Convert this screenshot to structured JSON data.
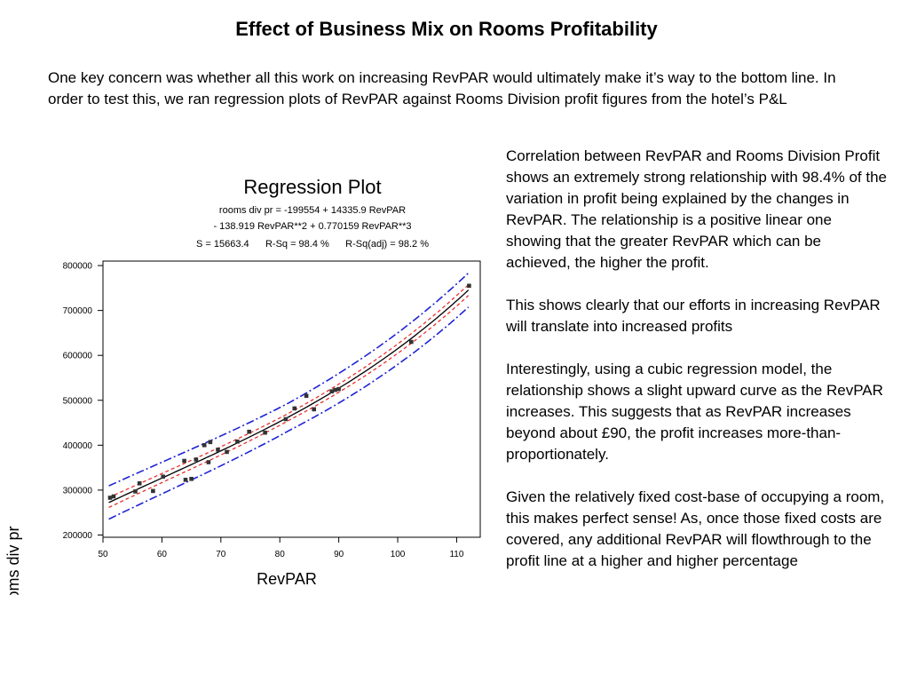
{
  "slide": {
    "title": "Effect of Business Mix on Rooms Profitability",
    "intro": "One key concern was whether all this work on increasing RevPAR would ultimately make it’s way to the bottom line. In order to test this, we ran regression plots of RevPAR against Rooms Division profit figures from the hotel’s P&L",
    "paragraphs": [
      "Correlation between RevPAR and Rooms Division Profit shows an extremely strong relationship with 98.4% of the variation in profit being explained by the changes in RevPAR. The relationship is a positive linear one showing that the greater RevPAR which can be achieved, the higher the profit.",
      "This shows clearly that our efforts in increasing RevPAR will translate into increased profits",
      "Interestingly, using a cubic regression model, the relationship shows a slight upward curve as the RevPAR increases. This suggests that as RevPAR increases beyond about £90, the profit increases more-than-proportionately.",
      "Given the relatively fixed cost-base of occupying a room, this makes perfect sense! As, once those fixed costs are covered, any additional RevPAR will flowthrough to the profit line at a higher and higher percentage"
    ]
  },
  "chart_data": {
    "type": "scatter",
    "title": "Regression Plot",
    "equation_lines": [
      "rooms div pr = -199554 + 14335.9 RevPAR",
      "- 138.919 RevPAR**2 + 0.770159 RevPAR**3",
      "S = 15663.4      R-Sq = 98.4 %      R-Sq(adj) = 98.2 %"
    ],
    "xlabel": "RevPAR",
    "ylabel": "rooms div pr",
    "xlim": [
      50,
      114
    ],
    "ylim": [
      195000,
      810000
    ],
    "x_ticks": [
      50,
      60,
      70,
      80,
      90,
      100,
      110
    ],
    "y_ticks": [
      200000,
      300000,
      400000,
      500000,
      600000,
      700000,
      800000
    ],
    "grid": false,
    "fit": {
      "intercept": -199554,
      "b1": 14335.9,
      "b2": -138.919,
      "b3": 0.770159,
      "x_range": [
        51,
        112
      ]
    },
    "ci_half_width": [
      11000,
      8000,
      12000
    ],
    "pi_half_width": [
      37000,
      31000,
      38000
    ],
    "colors": {
      "points": "#333333",
      "fit": "#000000",
      "confidence": "#e8231f",
      "prediction": "#1f23d6"
    },
    "points": [
      {
        "x": 51.2,
        "y": 283000
      },
      {
        "x": 51.8,
        "y": 286000
      },
      {
        "x": 55.5,
        "y": 297000
      },
      {
        "x": 56.2,
        "y": 315000
      },
      {
        "x": 58.5,
        "y": 298000
      },
      {
        "x": 60.2,
        "y": 330000
      },
      {
        "x": 63.8,
        "y": 365000
      },
      {
        "x": 64.0,
        "y": 323000
      },
      {
        "x": 65.0,
        "y": 325000
      },
      {
        "x": 65.8,
        "y": 368000
      },
      {
        "x": 67.2,
        "y": 400000
      },
      {
        "x": 67.9,
        "y": 362000
      },
      {
        "x": 68.2,
        "y": 407000
      },
      {
        "x": 69.5,
        "y": 390000
      },
      {
        "x": 71.0,
        "y": 385000
      },
      {
        "x": 72.8,
        "y": 408000
      },
      {
        "x": 74.8,
        "y": 430000
      },
      {
        "x": 77.5,
        "y": 428000
      },
      {
        "x": 81.0,
        "y": 458000
      },
      {
        "x": 82.5,
        "y": 482000
      },
      {
        "x": 84.5,
        "y": 510000
      },
      {
        "x": 85.8,
        "y": 480000
      },
      {
        "x": 88.8,
        "y": 520000
      },
      {
        "x": 89.4,
        "y": 523000
      },
      {
        "x": 90.0,
        "y": 525000
      },
      {
        "x": 102.3,
        "y": 630000
      },
      {
        "x": 112.1,
        "y": 755000
      }
    ]
  }
}
